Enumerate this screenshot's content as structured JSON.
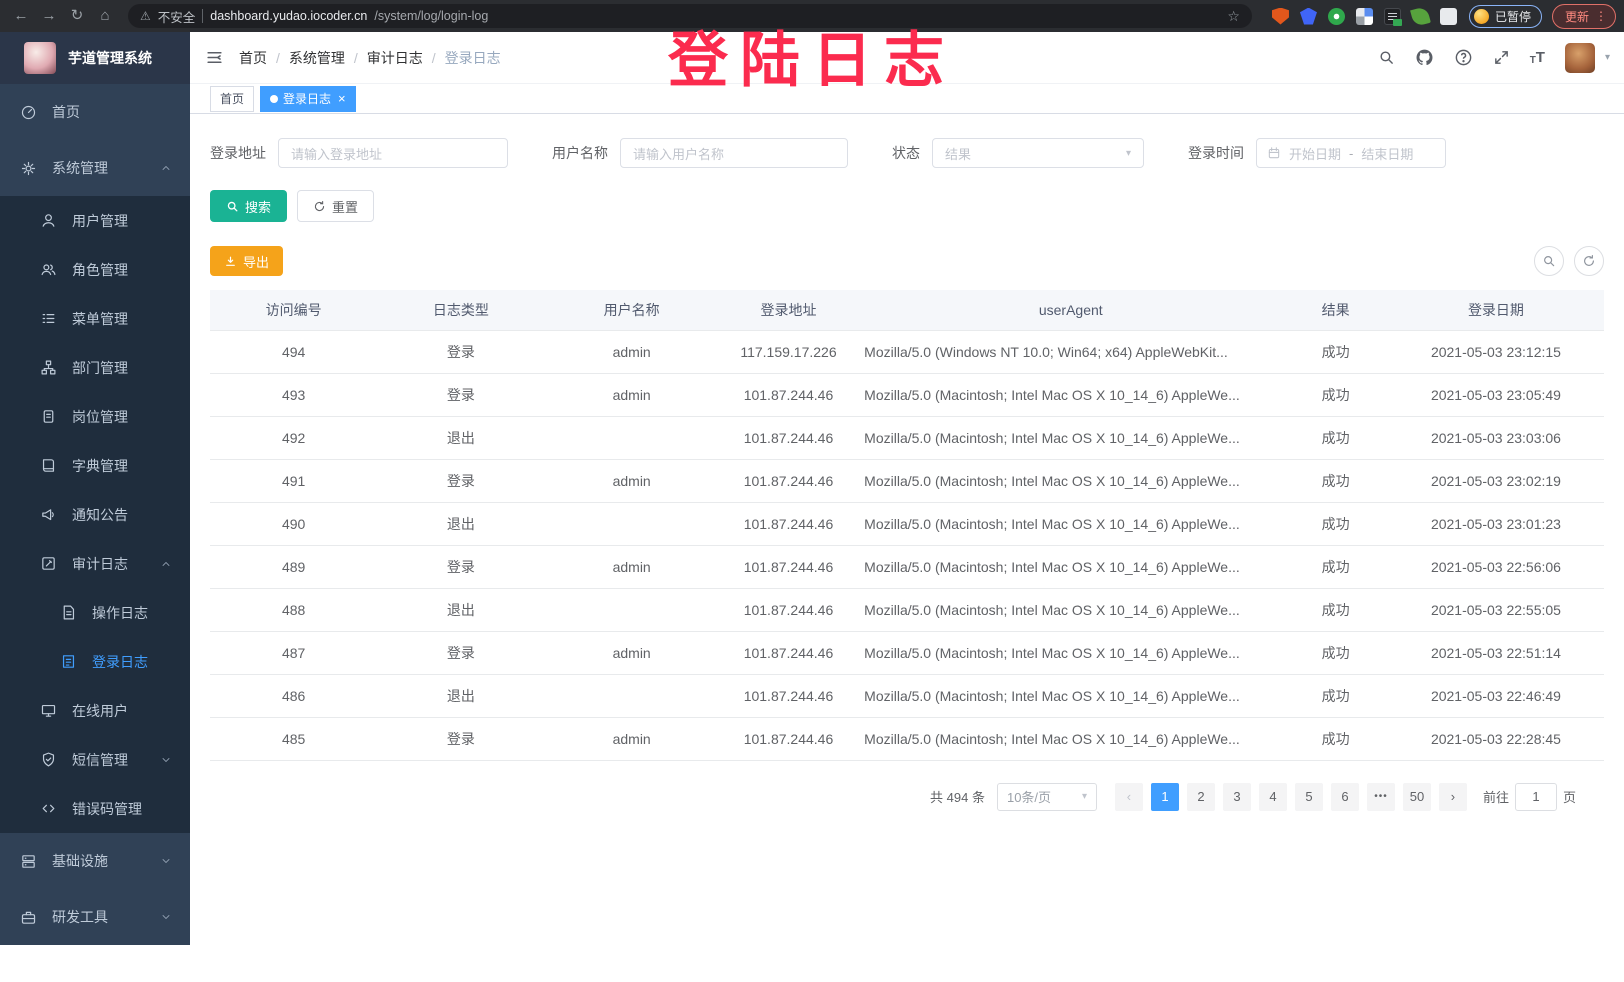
{
  "browser": {
    "security_label": "不安全",
    "url_host": "dashboard.yudao.iocoder.cn",
    "url_path": "/system/log/login-log",
    "paused_label": "已暂停",
    "update_label": "更新"
  },
  "overlay": {
    "annotation": "登陆日志",
    "color": "#fb2b4e"
  },
  "app": {
    "title": "芋道管理系统"
  },
  "colors": {
    "accent": "#409eff",
    "search_button": "#1ab394",
    "export_button": "#f5a31a",
    "sidebar_bg": "#304156",
    "submenu_bg": "#1f2d3d",
    "annotation": "#fb2b4e"
  },
  "sidebar": {
    "items": [
      {
        "key": "home",
        "label": "首页",
        "icon": "dashboard-icon",
        "level": 0
      },
      {
        "key": "system-management",
        "label": "系统管理",
        "icon": "gear-icon",
        "level": 0,
        "expand": "up"
      },
      {
        "key": "user-management",
        "label": "用户管理",
        "icon": "user-icon",
        "level": 1
      },
      {
        "key": "role-management",
        "label": "角色管理",
        "icon": "users-icon",
        "level": 1
      },
      {
        "key": "menu-management",
        "label": "菜单管理",
        "icon": "list-icon",
        "level": 1
      },
      {
        "key": "dept-management",
        "label": "部门管理",
        "icon": "tree-icon",
        "level": 1
      },
      {
        "key": "post-management",
        "label": "岗位管理",
        "icon": "badge-icon",
        "level": 1
      },
      {
        "key": "dict-management",
        "label": "字典管理",
        "icon": "book-icon",
        "level": 1
      },
      {
        "key": "notice-announcement",
        "label": "通知公告",
        "icon": "megaphone-icon",
        "level": 1
      },
      {
        "key": "audit-log",
        "label": "审计日志",
        "icon": "edit-square-icon",
        "level": 1,
        "expand": "up"
      },
      {
        "key": "operation-log",
        "label": "操作日志",
        "icon": "doc-icon",
        "level": 2
      },
      {
        "key": "login-log",
        "label": "登录日志",
        "icon": "login-doc-icon",
        "level": 2,
        "active": true
      },
      {
        "key": "online-users",
        "label": "在线用户",
        "icon": "monitor-icon",
        "level": 1
      },
      {
        "key": "sms-management",
        "label": "短信管理",
        "icon": "shield-check-icon",
        "level": 1,
        "expand": "down"
      },
      {
        "key": "error-code-management",
        "label": "错误码管理",
        "icon": "code-icon",
        "level": 1
      },
      {
        "key": "infrastructure",
        "label": "基础设施",
        "icon": "server-icon",
        "level": 0,
        "expand": "down"
      },
      {
        "key": "dev-tools",
        "label": "研发工具",
        "icon": "toolbox-icon",
        "level": 0,
        "expand": "down"
      }
    ]
  },
  "header": {
    "breadcrumb": [
      "首页",
      "系统管理",
      "审计日志",
      "登录日志"
    ]
  },
  "tabs": [
    {
      "key": "home",
      "label": "首页",
      "active": false,
      "closable": false
    },
    {
      "key": "login-log",
      "label": "登录日志",
      "active": true,
      "closable": true
    }
  ],
  "filters": {
    "login_address": {
      "label": "登录地址",
      "placeholder": "请输入登录地址"
    },
    "username": {
      "label": "用户名称",
      "placeholder": "请输入用户名称"
    },
    "status": {
      "label": "状态",
      "placeholder": "结果"
    },
    "login_time": {
      "label": "登录时间",
      "start_placeholder": "开始日期",
      "separator": "-",
      "end_placeholder": "结束日期"
    }
  },
  "actions": {
    "search": "搜索",
    "reset": "重置",
    "export": "导出"
  },
  "table": {
    "headers": [
      "访问编号",
      "日志类型",
      "用户名称",
      "登录地址",
      "userAgent",
      "结果",
      "登录日期"
    ],
    "rows": [
      [
        "494",
        "登录",
        "admin",
        "117.159.17.226",
        "Mozilla/5.0 (Windows NT 10.0; Win64; x64) AppleWebKit...",
        "成功",
        "2021-05-03 23:12:15"
      ],
      [
        "493",
        "登录",
        "admin",
        "101.87.244.46",
        "Mozilla/5.0 (Macintosh; Intel Mac OS X 10_14_6) AppleWe...",
        "成功",
        "2021-05-03 23:05:49"
      ],
      [
        "492",
        "退出",
        "",
        "101.87.244.46",
        "Mozilla/5.0 (Macintosh; Intel Mac OS X 10_14_6) AppleWe...",
        "成功",
        "2021-05-03 23:03:06"
      ],
      [
        "491",
        "登录",
        "admin",
        "101.87.244.46",
        "Mozilla/5.0 (Macintosh; Intel Mac OS X 10_14_6) AppleWe...",
        "成功",
        "2021-05-03 23:02:19"
      ],
      [
        "490",
        "退出",
        "",
        "101.87.244.46",
        "Mozilla/5.0 (Macintosh; Intel Mac OS X 10_14_6) AppleWe...",
        "成功",
        "2021-05-03 23:01:23"
      ],
      [
        "489",
        "登录",
        "admin",
        "101.87.244.46",
        "Mozilla/5.0 (Macintosh; Intel Mac OS X 10_14_6) AppleWe...",
        "成功",
        "2021-05-03 22:56:06"
      ],
      [
        "488",
        "退出",
        "",
        "101.87.244.46",
        "Mozilla/5.0 (Macintosh; Intel Mac OS X 10_14_6) AppleWe...",
        "成功",
        "2021-05-03 22:55:05"
      ],
      [
        "487",
        "登录",
        "admin",
        "101.87.244.46",
        "Mozilla/5.0 (Macintosh; Intel Mac OS X 10_14_6) AppleWe...",
        "成功",
        "2021-05-03 22:51:14"
      ],
      [
        "486",
        "退出",
        "",
        "101.87.244.46",
        "Mozilla/5.0 (Macintosh; Intel Mac OS X 10_14_6) AppleWe...",
        "成功",
        "2021-05-03 22:46:49"
      ],
      [
        "485",
        "登录",
        "admin",
        "101.87.244.46",
        "Mozilla/5.0 (Macintosh; Intel Mac OS X 10_14_6) AppleWe...",
        "成功",
        "2021-05-03 22:28:45"
      ]
    ]
  },
  "pagination": {
    "total_text": "共 494 条",
    "page_size": "10条/页",
    "pages": [
      "1",
      "2",
      "3",
      "4",
      "5",
      "6",
      "•••",
      "50"
    ],
    "active_page": "1",
    "prev_symbol": "‹",
    "next_symbol": "›",
    "goto_label": "前往",
    "goto_value": "1",
    "goto_suffix": "页"
  }
}
